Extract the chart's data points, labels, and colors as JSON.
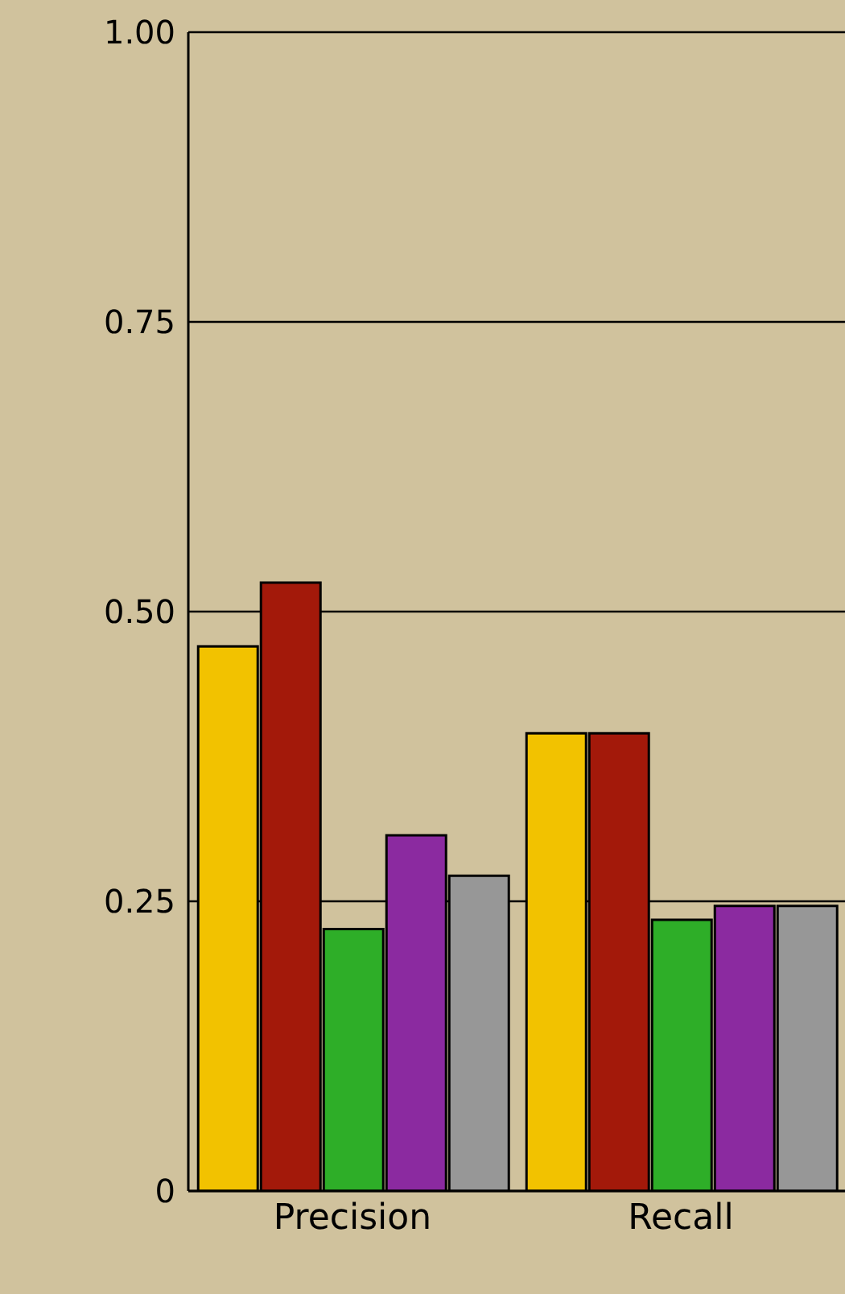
{
  "chart_data": {
    "type": "bar",
    "categories": [
      "Precision",
      "Recall"
    ],
    "series": [
      {
        "color": "#f2c200",
        "values": [
          0.47,
          0.395
        ]
      },
      {
        "color": "#a3190a",
        "values": [
          0.525,
          0.395
        ]
      },
      {
        "color": "#2eae28",
        "values": [
          0.226,
          0.234
        ]
      },
      {
        "color": "#8b2aa0",
        "values": [
          0.307,
          0.246
        ]
      },
      {
        "color": "#979797",
        "values": [
          0.272,
          0.246
        ]
      }
    ],
    "ylim": [
      0,
      1
    ],
    "yticks": [
      0,
      0.25,
      {
        "value": 0.5,
        "label": "0.50"
      },
      0.75,
      {
        "value": 1,
        "label": "1.00"
      }
    ],
    "grid": "y",
    "legend": false
  }
}
